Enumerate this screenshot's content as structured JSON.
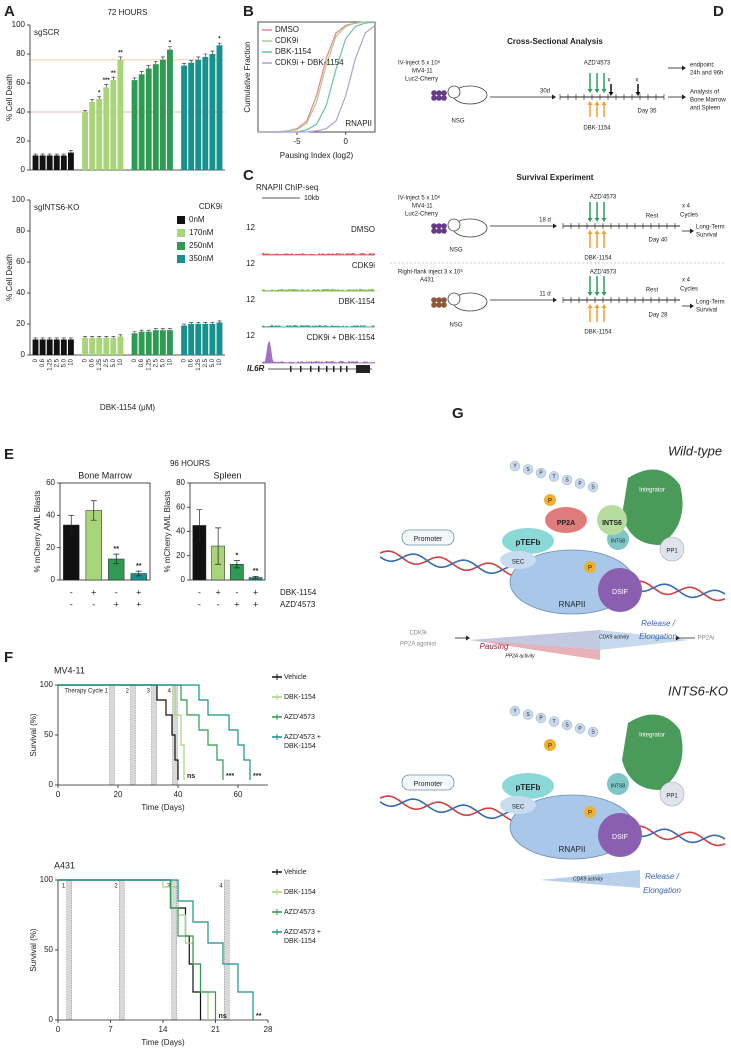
{
  "chart_data": [
    {
      "type": "bar_groups",
      "panel": "A",
      "title": "72 HOURS",
      "subtitle": "sgSCR",
      "ylabel": "% Cell Death",
      "categories": [
        null,
        null,
        null,
        null,
        null,
        null
      ],
      "series": [
        {
          "color": "#111111",
          "values": [
            10,
            10,
            10,
            10,
            10,
            12
          ],
          "errors": [
            1,
            1,
            1,
            1,
            1,
            1.5
          ]
        },
        {
          "color": "#a8d47a",
          "values": [
            40,
            47,
            49,
            57,
            62,
            76
          ],
          "errors": [
            1,
            1.5,
            1.5,
            2,
            2,
            2
          ],
          "significance": [
            null,
            null,
            "*",
            "***",
            "**",
            "**"
          ]
        },
        {
          "color": "#2e9a52",
          "values": [
            62,
            66,
            70,
            73,
            76,
            83
          ],
          "errors": [
            1.5,
            2,
            2,
            2,
            2,
            2
          ],
          "significance": [
            null,
            null,
            null,
            null,
            null,
            "*"
          ]
        },
        {
          "color": "#17918f",
          "values": [
            72,
            74,
            76,
            78,
            80,
            86
          ],
          "errors": [
            1.5,
            1.5,
            2,
            2,
            2,
            1.5
          ],
          "significance": [
            null,
            null,
            null,
            null,
            null,
            "*"
          ]
        }
      ],
      "reference_lines": [
        {
          "value": 40,
          "color": "#f2a0a0"
        },
        {
          "value": 76,
          "color": "#f6cc96"
        }
      ],
      "ylim": [
        0,
        100
      ],
      "yticks": [
        0,
        20,
        40,
        60,
        80,
        100
      ]
    },
    {
      "type": "bar_groups",
      "subtitle": "sgINTS6-KO",
      "ylabel": "% Cell Death",
      "xlabel": "DBK-1154 (μM)",
      "legend_title": "CDK9i",
      "categories": [
        "0",
        "0.6",
        "1.25",
        "2.5",
        "5.0",
        "10"
      ],
      "series": [
        {
          "name": "0nM",
          "color": "#111111",
          "values": [
            10,
            10,
            10,
            10,
            10,
            10
          ],
          "errors": [
            1,
            1,
            1,
            1,
            1,
            1
          ]
        },
        {
          "name": "170nM",
          "color": "#a8d47a",
          "values": [
            11,
            11,
            11,
            11,
            11,
            12
          ],
          "errors": [
            1,
            1,
            1,
            1,
            1,
            1
          ]
        },
        {
          "name": "250nM",
          "color": "#2e9a52",
          "values": [
            14,
            15,
            15,
            16,
            16,
            16
          ],
          "errors": [
            1,
            1,
            1,
            1,
            1,
            1
          ]
        },
        {
          "name": "350nM",
          "color": "#17918f",
          "values": [
            19,
            20,
            20,
            20,
            20,
            21
          ],
          "errors": [
            1,
            1,
            1,
            1,
            1,
            1
          ]
        }
      ],
      "ylim": [
        0,
        100
      ],
      "yticks": [
        0,
        20,
        40,
        60,
        80,
        100
      ]
    },
    {
      "type": "line",
      "panel": "B",
      "xlabel": "Pausing Index (log2)",
      "ylabel": "Cumulative Fraction",
      "annotation": "RNAPII",
      "x": [
        -9,
        -7,
        -6,
        -5,
        -4,
        -3,
        -2,
        -1,
        0,
        1,
        2,
        3
      ],
      "series": [
        {
          "name": "DMSO",
          "color": "#e8878a",
          "values": [
            0,
            0,
            0.01,
            0.03,
            0.1,
            0.33,
            0.67,
            0.9,
            0.97,
            0.99,
            1,
            1
          ]
        },
        {
          "name": "CDK9i",
          "color": "#a8d08d",
          "values": [
            0,
            0,
            0.01,
            0.02,
            0.08,
            0.27,
            0.61,
            0.87,
            0.96,
            0.99,
            1,
            1
          ]
        },
        {
          "name": "DBK-1154",
          "color": "#6cc0b0",
          "values": [
            0,
            0,
            0,
            0,
            0.02,
            0.07,
            0.24,
            0.57,
            0.85,
            0.96,
            0.99,
            1
          ]
        },
        {
          "name": "CDK9i + DBK-1154",
          "color": "#b39ddb",
          "values": [
            0,
            0,
            0,
            0,
            0,
            0.01,
            0.03,
            0.1,
            0.33,
            0.67,
            0.9,
            0.97
          ]
        }
      ],
      "xlim": [
        -9,
        3
      ],
      "xticks": [
        -5,
        0
      ],
      "ylim": [
        0,
        1
      ]
    },
    {
      "type": "bar",
      "panel": "E",
      "subtitle": "Bone Marrow",
      "ylabel": "% mCherry AML Blasts",
      "categories": [
        null,
        null,
        null,
        null
      ],
      "values": [
        34,
        43,
        13,
        4
      ],
      "errors": [
        6,
        6,
        3,
        1.5
      ],
      "colors": [
        "#111111",
        "#a8d47a",
        "#2e9a52",
        "#17918f"
      ],
      "significance": [
        null,
        null,
        "**",
        "**"
      ],
      "ylim": [
        0,
        60
      ],
      "yticks": [
        0,
        20,
        40,
        60
      ]
    },
    {
      "type": "bar",
      "subtitle": "Spleen",
      "ylabel": "% mCherry AML Blasts",
      "categories": [
        null,
        null,
        null,
        null
      ],
      "values": [
        45,
        28,
        13,
        2
      ],
      "errors": [
        13,
        15,
        3,
        1
      ],
      "colors": [
        "#111111",
        "#a8d47a",
        "#2e9a52",
        "#17918f"
      ],
      "significance": [
        null,
        null,
        "*",
        "**"
      ],
      "ylim": [
        0,
        80
      ],
      "yticks": [
        0,
        20,
        40,
        60,
        80
      ]
    },
    {
      "type": "survival",
      "panel": "F",
      "title": "MV4-11",
      "xlabel": "Time (Days)",
      "ylabel": "Survival (%)",
      "therapy_cycles": [
        {
          "day": 18,
          "label": "Therapy Cycle 1"
        },
        {
          "day": 25,
          "label": "2"
        },
        {
          "day": 32,
          "label": "3"
        },
        {
          "day": 39,
          "label": "4"
        }
      ],
      "series": [
        {
          "name": "Vehicle",
          "color": "#111111",
          "x": [
            0,
            33,
            33,
            36,
            36,
            38,
            38,
            39,
            39,
            40,
            40
          ],
          "values": [
            100,
            100,
            85,
            85,
            70,
            70,
            50,
            50,
            25,
            25,
            5
          ]
        },
        {
          "name": "DBK-1154",
          "color": "#a8d47a",
          "x": [
            0,
            39,
            39,
            41,
            41,
            42,
            42
          ],
          "values": [
            100,
            100,
            70,
            70,
            40,
            40,
            5
          ],
          "end_label": "ns"
        },
        {
          "name": "AZD'4573",
          "color": "#2e9a52",
          "x": [
            0,
            41,
            41,
            43,
            43,
            47,
            47,
            50,
            50,
            53,
            53,
            55,
            55
          ],
          "values": [
            100,
            100,
            85,
            85,
            70,
            70,
            55,
            55,
            40,
            40,
            25,
            25,
            5
          ],
          "end_label": "***"
        },
        {
          "name": "AZD'4573 + DBK-1154",
          "color": "#17918f",
          "x": [
            0,
            47,
            47,
            50,
            50,
            57,
            57,
            60,
            60,
            62,
            62,
            64,
            64
          ],
          "values": [
            100,
            100,
            85,
            85,
            70,
            70,
            55,
            55,
            40,
            40,
            25,
            25,
            5
          ],
          "end_label": "***"
        }
      ],
      "xlim": [
        0,
        70
      ],
      "xticks": [
        0,
        20,
        40,
        60
      ],
      "ylim": [
        0,
        100
      ],
      "yticks": [
        0,
        50,
        100
      ]
    },
    {
      "type": "survival",
      "title": "A431",
      "xlabel": "Time (Days)",
      "ylabel": "Survival (%)",
      "therapy_cycles": [
        {
          "day": 1.5,
          "label": "1"
        },
        {
          "day": 8.5,
          "label": "2"
        },
        {
          "day": 15.5,
          "label": "3"
        },
        {
          "day": 22.5,
          "label": "4"
        }
      ],
      "series": [
        {
          "name": "Vehicle",
          "color": "#111111",
          "x": [
            0,
            15,
            15,
            17,
            17,
            17.5,
            17.5,
            18,
            18,
            19,
            19
          ],
          "values": [
            100,
            100,
            80,
            80,
            60,
            60,
            40,
            40,
            20,
            20,
            0
          ]
        },
        {
          "name": "DBK-1154",
          "color": "#a8d47a",
          "x": [
            0,
            14,
            14,
            16,
            16,
            17,
            17,
            18,
            18,
            19,
            19,
            20,
            20
          ],
          "values": [
            100,
            100,
            95,
            95,
            75,
            75,
            55,
            55,
            40,
            40,
            20,
            20,
            0
          ]
        },
        {
          "name": "AZD'4573",
          "color": "#2e9a52",
          "x": [
            0,
            15,
            15,
            16,
            16,
            18,
            18,
            19,
            19,
            21,
            21
          ],
          "values": [
            100,
            100,
            80,
            80,
            60,
            60,
            40,
            40,
            20,
            20,
            0
          ],
          "end_label": "ns"
        },
        {
          "name": "AZD'4573 + DBK-1154",
          "color": "#17918f",
          "x": [
            0,
            16,
            16,
            18,
            18,
            20,
            20,
            22,
            22,
            24,
            24,
            26,
            26
          ],
          "values": [
            100,
            100,
            85,
            85,
            70,
            70,
            55,
            55,
            40,
            40,
            20,
            20,
            0
          ],
          "end_label": "**"
        }
      ],
      "xlim": [
        0,
        28
      ],
      "xticks": [
        0,
        7,
        14,
        21,
        28
      ],
      "ylim": [
        0,
        100
      ],
      "yticks": [
        0,
        50,
        100
      ]
    }
  ],
  "panel_e": {
    "title": "96 HOURS",
    "conditions": [
      {
        "label": "DBK-1154",
        "signs": [
          "-",
          "+",
          "-",
          "+"
        ]
      },
      {
        "label": "AZD'4573",
        "signs": [
          "-",
          "-",
          "+",
          "+"
        ]
      }
    ]
  },
  "chip_seq": {
    "panel": "C",
    "title": "RNAPII ChIP-seq",
    "scale_bar": "10kb",
    "gene": "IL6R",
    "tracks": [
      {
        "name": "DMSO",
        "max": 12,
        "color": "#e05a5a"
      },
      {
        "name": "CDK9i",
        "max": 12,
        "color": "#7cc04a"
      },
      {
        "name": "DBK-1154",
        "max": 12,
        "color": "#3aa8a0"
      },
      {
        "name": "CDK9i + DBK-1154",
        "max": 12,
        "color": "#a070c8"
      }
    ]
  },
  "schema": {
    "panel": "D",
    "texts": [
      "Cross-Sectional Analysis",
      "IV-Inject 5 x 10⁶",
      "MV4-11",
      "Luc2-Cherry",
      "AZD'4573",
      "30d",
      "x",
      "x",
      "NSG",
      "DBK-1154",
      "Day 35",
      "endpoint:",
      "24h and 96h",
      "Analysis of",
      "Bone Marrow",
      "and Spleen",
      "Survival Experiment",
      "IV-Inject 5 x 10⁶",
      "MV4-11",
      "Luc2-Cherry",
      "AZD'4573",
      "18 d",
      "Rest",
      "x 4",
      "Cycles",
      "NSG",
      "Day 40",
      "Long-Term",
      "Survival",
      "DBK-1154",
      "Right-flank inject 3 x 10⁶",
      "A431",
      "AZD'4573",
      "11 d",
      "Rest",
      "x 4",
      "Cycles",
      "NSG",
      "Day 28",
      "Long-Term",
      "Survival",
      "DBK-1154"
    ]
  },
  "model": {
    "panel": "G",
    "ctd": [
      "Y",
      "S",
      "P",
      "T",
      "S",
      "P",
      "S"
    ],
    "texts": [
      "Wild-type",
      "Integrator",
      "PP2A",
      "INTS6",
      "INTS8",
      "pTEFb",
      "SEC",
      "PP1",
      "Promoter",
      "DSIF",
      "RNAPII",
      "CDK9i",
      "PP2A agonist",
      "Pausing",
      "PP2A activity",
      "CDK9 activity",
      "Release /",
      "Elongation",
      "PP2Ai",
      "INTS6-KO",
      "Integrator",
      "INTS8",
      "pTEFb",
      "SEC",
      "PP1",
      "Promoter",
      "DSIF",
      "RNAPII",
      "CDK9 activity",
      "Release /",
      "Elongation",
      "P",
      "P",
      "P",
      "P"
    ]
  }
}
